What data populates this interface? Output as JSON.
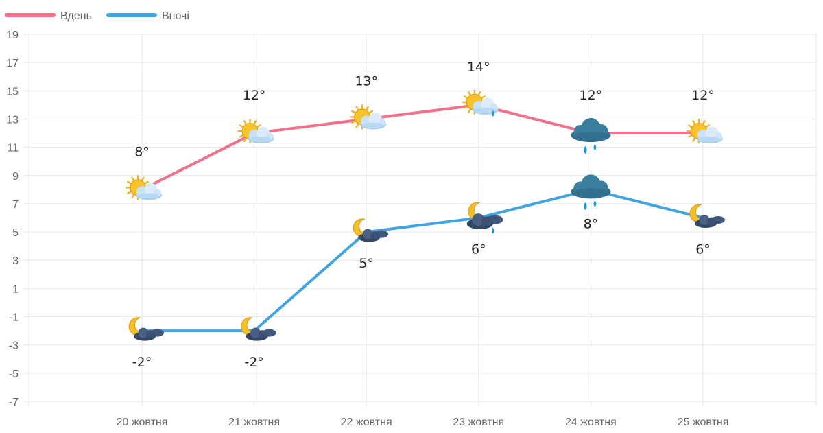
{
  "chart_data": {
    "type": "line",
    "categories": [
      "20 жовтня",
      "21 жовтня",
      "22 жовтня",
      "23 жовтня",
      "24 жовтня",
      "25 жовтня"
    ],
    "series": [
      {
        "name": "Вдень",
        "color": "#f07189",
        "values": [
          8,
          12,
          13,
          14,
          12,
          12
        ],
        "labels": [
          "8°",
          "12°",
          "13°",
          "14°",
          "12°",
          "12°"
        ],
        "icons": [
          "sun-cloud-icon",
          "sun-cloud-icon",
          "sun-cloud-icon",
          "sun-cloud-rain-icon",
          "rain-cloud-icon",
          "sun-cloud-icon"
        ]
      },
      {
        "name": "Вночі",
        "color": "#41a4e0",
        "values": [
          -2,
          -2,
          5,
          6,
          8,
          6
        ],
        "labels": [
          "-2°",
          "-2°",
          "5°",
          "6°",
          "8°",
          "6°"
        ],
        "icons": [
          "moon-cloud-icon",
          "moon-cloud-icon",
          "moon-cloud-icon",
          "moon-cloud-rain-icon",
          "rain-cloud-icon",
          "moon-cloud-icon"
        ]
      }
    ],
    "yticks": [
      "19",
      "17",
      "15",
      "13",
      "11",
      "9",
      "7",
      "5",
      "3",
      "1",
      "-1",
      "-3",
      "-5",
      "-7"
    ],
    "ylim": [
      -7,
      19
    ],
    "grid": true,
    "legend": "top-left"
  }
}
